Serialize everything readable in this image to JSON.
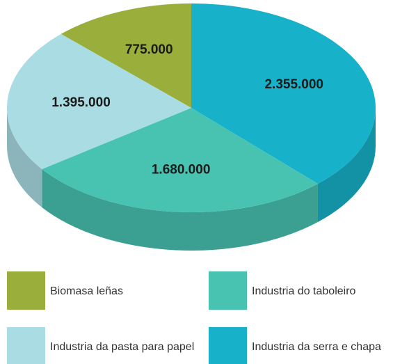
{
  "chart_data": {
    "type": "pie3d",
    "categories": [
      "Biomasa leñas",
      "Industria da serra e chapa",
      "Industria do taboleiro",
      "Industria da pasta para papel"
    ],
    "values": [
      775000,
      2355000,
      1680000,
      1395000
    ],
    "value_labels": [
      "775.000",
      "2.355.000",
      "1.680.000",
      "1.395.000"
    ],
    "colors": [
      "#9aae3b",
      "#17b2c9",
      "#48c3b2",
      "#a9dde3"
    ]
  }
}
